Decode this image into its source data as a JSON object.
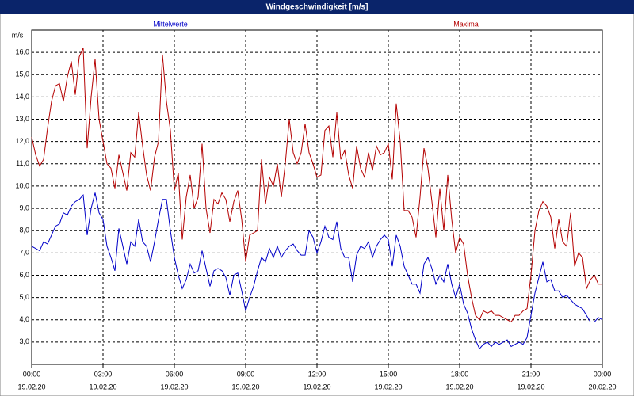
{
  "chart_data": {
    "type": "line",
    "title": "Windgeschwindigkeit [m/s]",
    "y_unit": "m/s",
    "grid": true,
    "xlim": [
      0,
      1440
    ],
    "ylim": [
      2,
      17
    ],
    "yticks": [
      {
        "value": 3,
        "label": "3,0"
      },
      {
        "value": 4,
        "label": "4,0"
      },
      {
        "value": 5,
        "label": "5,0"
      },
      {
        "value": 6,
        "label": "6,0"
      },
      {
        "value": 7,
        "label": "7,0"
      },
      {
        "value": 8,
        "label": "8,0"
      },
      {
        "value": 9,
        "label": "9,0"
      },
      {
        "value": 10,
        "label": "10,0"
      },
      {
        "value": 11,
        "label": "11,0"
      },
      {
        "value": 12,
        "label": "12,0"
      },
      {
        "value": 13,
        "label": "13,0"
      },
      {
        "value": 14,
        "label": "14,0"
      },
      {
        "value": 15,
        "label": "15,0"
      },
      {
        "value": 16,
        "label": "16,0"
      }
    ],
    "xticks": [
      {
        "value": 0,
        "label": "00:00"
      },
      {
        "value": 180,
        "label": "03:00"
      },
      {
        "value": 360,
        "label": "06:00"
      },
      {
        "value": 540,
        "label": "09:00"
      },
      {
        "value": 720,
        "label": "12:00"
      },
      {
        "value": 900,
        "label": "15:00"
      },
      {
        "value": 1080,
        "label": "18:00"
      },
      {
        "value": 1260,
        "label": "21:00"
      },
      {
        "value": 1440,
        "label": "00:00"
      }
    ],
    "xtick_dates": [
      "19.02.20",
      "19.02.20",
      "19.02.20",
      "19.02.20",
      "19.02.20",
      "19.02.20",
      "19.02.20",
      "19.02.20",
      "20.02.20"
    ],
    "x": [
      0,
      10,
      20,
      30,
      40,
      50,
      60,
      70,
      80,
      90,
      100,
      110,
      120,
      130,
      140,
      150,
      160,
      170,
      180,
      190,
      200,
      210,
      220,
      230,
      240,
      250,
      260,
      270,
      280,
      290,
      300,
      310,
      320,
      330,
      340,
      350,
      360,
      370,
      380,
      390,
      400,
      410,
      420,
      430,
      440,
      450,
      460,
      470,
      480,
      490,
      500,
      510,
      520,
      530,
      540,
      550,
      560,
      570,
      580,
      590,
      600,
      610,
      620,
      630,
      640,
      650,
      660,
      670,
      680,
      690,
      700,
      710,
      720,
      730,
      740,
      750,
      760,
      770,
      780,
      790,
      800,
      810,
      820,
      830,
      840,
      850,
      860,
      870,
      880,
      890,
      900,
      910,
      920,
      930,
      940,
      950,
      960,
      970,
      980,
      990,
      1000,
      1010,
      1020,
      1030,
      1040,
      1050,
      1060,
      1070,
      1080,
      1090,
      1100,
      1110,
      1120,
      1130,
      1140,
      1150,
      1160,
      1170,
      1180,
      1190,
      1200,
      1210,
      1220,
      1230,
      1240,
      1250,
      1260,
      1270,
      1280,
      1290,
      1300,
      1310,
      1320,
      1330,
      1340,
      1350,
      1360,
      1370,
      1380,
      1390,
      1400,
      1410,
      1420,
      1430,
      1440
    ],
    "series": [
      {
        "name": "Mittelwerte",
        "color": "#0000c8",
        "values": [
          7.3,
          7.2,
          7.1,
          7.5,
          7.4,
          7.8,
          8.2,
          8.3,
          8.8,
          8.7,
          9.1,
          9.3,
          9.4,
          9.6,
          7.8,
          9.0,
          9.7,
          8.8,
          8.5,
          7.3,
          6.8,
          6.2,
          8.1,
          7.3,
          6.5,
          7.5,
          7.3,
          8.5,
          7.5,
          7.3,
          6.6,
          7.5,
          8.5,
          9.4,
          9.4,
          8.0,
          6.8,
          6.0,
          5.4,
          5.8,
          6.5,
          6.1,
          6.2,
          7.1,
          6.3,
          5.5,
          6.2,
          6.3,
          6.2,
          5.9,
          5.1,
          6.0,
          6.1,
          5.3,
          4.4,
          5.0,
          5.5,
          6.2,
          6.8,
          6.6,
          7.2,
          6.8,
          7.3,
          6.8,
          7.1,
          7.3,
          7.4,
          7.1,
          6.9,
          6.9,
          8.0,
          7.7,
          7.0,
          7.5,
          8.2,
          7.7,
          7.6,
          8.4,
          7.2,
          6.8,
          6.8,
          5.7,
          6.9,
          7.3,
          7.2,
          7.5,
          6.8,
          7.3,
          7.6,
          7.8,
          7.6,
          6.4,
          7.8,
          7.3,
          6.4,
          6.0,
          5.6,
          5.6,
          5.2,
          6.5,
          6.8,
          6.3,
          5.6,
          6.0,
          5.7,
          6.5,
          5.6,
          5.0,
          5.6,
          4.7,
          4.3,
          3.6,
          3.1,
          2.7,
          2.9,
          3.0,
          2.8,
          3.0,
          2.9,
          3.0,
          3.1,
          2.8,
          2.9,
          3.0,
          2.9,
          3.2,
          4.2,
          5.2,
          5.9,
          6.6,
          5.7,
          5.8,
          5.3,
          5.3,
          5.0,
          5.1,
          4.9,
          4.7,
          4.6,
          4.5,
          4.2,
          3.9,
          3.9,
          4.1,
          4.0
        ]
      },
      {
        "name": "Maxima",
        "color": "#b40000",
        "values": [
          12.2,
          11.4,
          10.9,
          11.2,
          12.6,
          13.8,
          14.5,
          14.6,
          13.8,
          14.9,
          15.6,
          14.1,
          15.8,
          16.2,
          11.7,
          14.0,
          15.7,
          13.0,
          12.0,
          11.0,
          10.8,
          9.9,
          11.4,
          10.6,
          9.8,
          11.5,
          11.3,
          13.3,
          11.8,
          10.5,
          9.8,
          11.3,
          12.0,
          15.9,
          13.8,
          12.5,
          9.8,
          10.6,
          7.6,
          9.5,
          10.5,
          9.0,
          9.5,
          11.9,
          9.0,
          7.9,
          9.4,
          9.2,
          9.7,
          9.4,
          8.4,
          9.3,
          9.8,
          8.5,
          6.6,
          7.8,
          7.9,
          8.0,
          11.2,
          9.2,
          10.4,
          10.0,
          11.0,
          9.5,
          11.0,
          13.0,
          11.5,
          11.0,
          11.5,
          12.8,
          11.5,
          11.0,
          10.4,
          10.5,
          12.5,
          12.7,
          11.3,
          13.3,
          11.2,
          11.6,
          10.5,
          9.9,
          11.8,
          10.8,
          10.4,
          11.5,
          10.7,
          11.8,
          11.4,
          11.5,
          11.9,
          10.3,
          13.7,
          12.0,
          8.9,
          8.9,
          8.6,
          7.7,
          9.5,
          11.7,
          10.8,
          9.3,
          7.7,
          9.9,
          8.0,
          10.5,
          8.5,
          7.0,
          7.7,
          7.4,
          6.0,
          5.0,
          4.2,
          4.0,
          4.4,
          4.3,
          4.4,
          4.2,
          4.2,
          4.1,
          4.0,
          3.9,
          4.2,
          4.2,
          4.4,
          4.5,
          6.0,
          8.0,
          8.9,
          9.3,
          9.1,
          8.6,
          7.2,
          8.5,
          7.5,
          7.3,
          8.8,
          6.4,
          7.0,
          6.8,
          5.4,
          5.8,
          6.0,
          5.6,
          5.6
        ]
      }
    ]
  }
}
